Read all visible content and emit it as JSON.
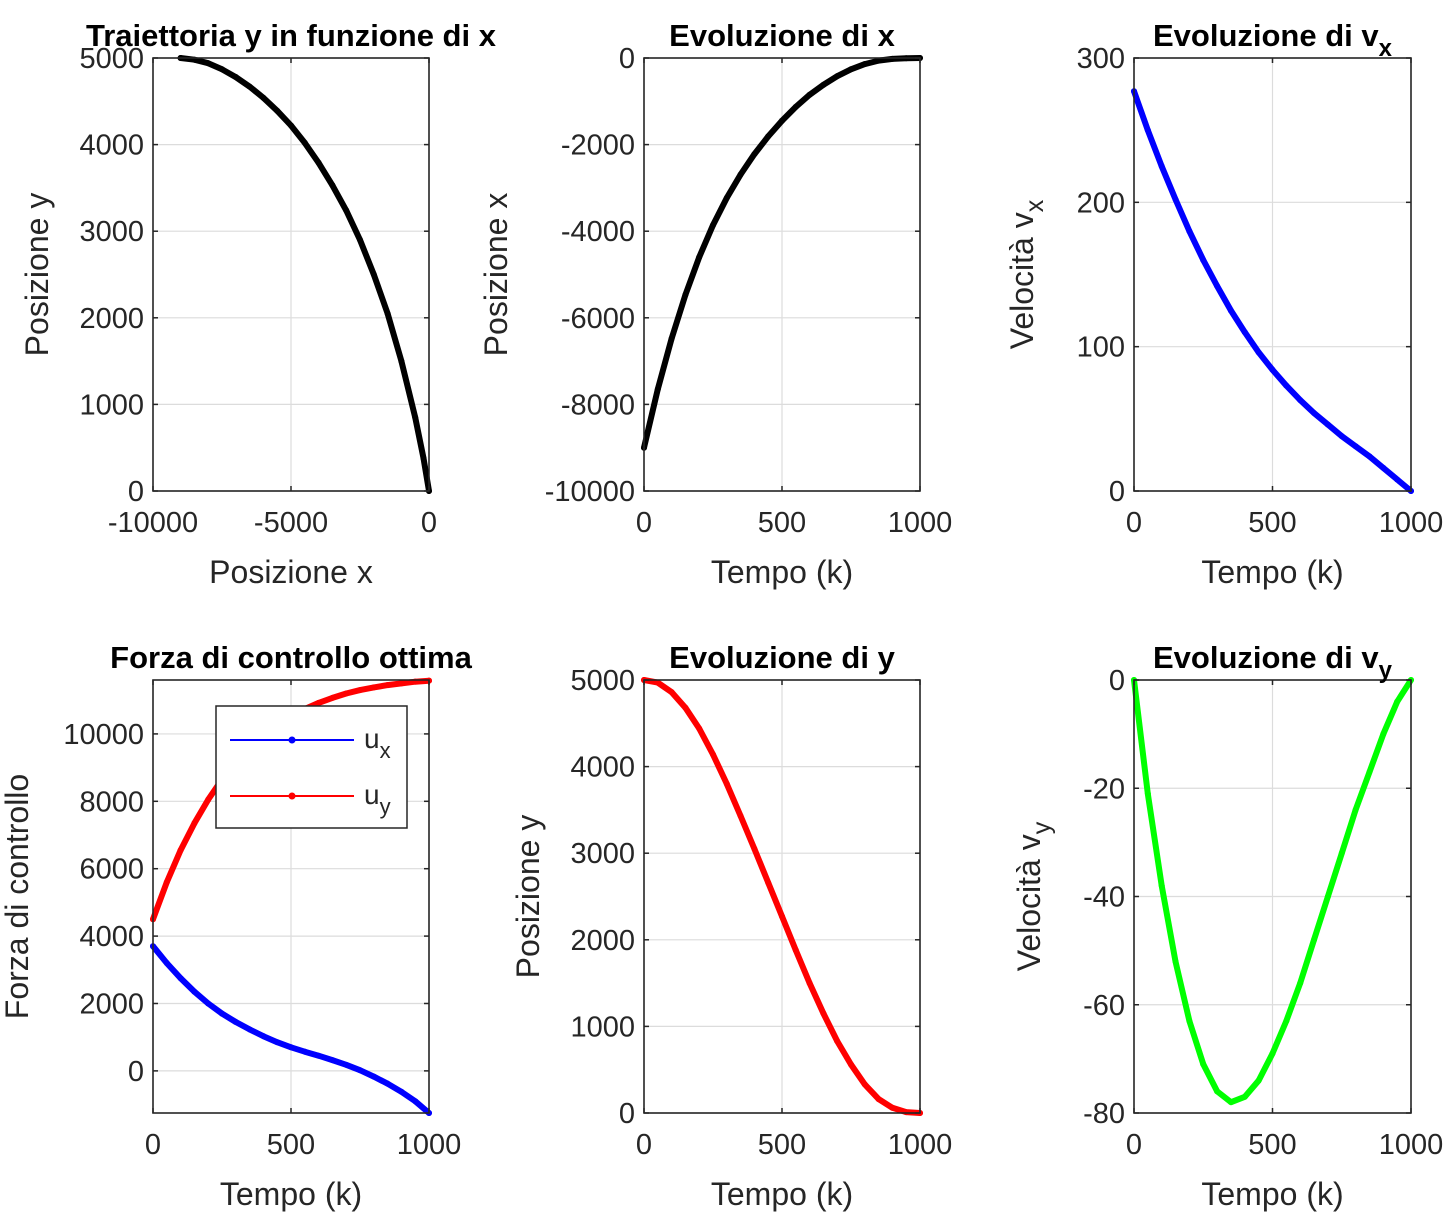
{
  "chart_data": [
    {
      "id": "traj",
      "type": "line",
      "title": "Traiettoria y in funzione di x",
      "xlabel": "Posizione x",
      "ylabel": "Posizione y",
      "xlim": [
        -10000,
        0
      ],
      "ylim": [
        0,
        5000
      ],
      "xticks": [
        -10000,
        -5000,
        0
      ],
      "yticks": [
        0,
        1000,
        2000,
        3000,
        4000,
        5000
      ],
      "xtick_labels": [
        "-10000",
        "-5000",
        "0"
      ],
      "ytick_labels": [
        "0",
        "1000",
        "2000",
        "3000",
        "4000",
        "5000"
      ],
      "grid": true,
      "series": [
        {
          "color": "#000000",
          "x": [
            -9000,
            -8500,
            -8000,
            -7500,
            -7000,
            -6500,
            -6000,
            -5500,
            -5000,
            -4500,
            -4000,
            -3500,
            -3000,
            -2500,
            -2000,
            -1500,
            -1000,
            -500,
            -200,
            0
          ],
          "y": [
            5000,
            4980,
            4940,
            4870,
            4780,
            4670,
            4540,
            4390,
            4220,
            4020,
            3790,
            3530,
            3240,
            2900,
            2500,
            2050,
            1500,
            850,
            380,
            0
          ]
        }
      ]
    },
    {
      "id": "evx",
      "type": "line",
      "title": "Evoluzione di x",
      "xlabel": "Tempo (k)",
      "ylabel": "Posizione x",
      "xlim": [
        0,
        1000
      ],
      "ylim": [
        -10000,
        0
      ],
      "xticks": [
        0,
        500,
        1000
      ],
      "yticks": [
        -10000,
        -8000,
        -6000,
        -4000,
        -2000,
        0
      ],
      "xtick_labels": [
        "0",
        "500",
        "1000"
      ],
      "ytick_labels": [
        "-10000",
        "-8000",
        "-6000",
        "-4000",
        "-2000",
        "0"
      ],
      "grid": true,
      "series": [
        {
          "color": "#000000",
          "x": [
            0,
            50,
            100,
            150,
            200,
            250,
            300,
            350,
            400,
            450,
            500,
            550,
            600,
            650,
            700,
            750,
            800,
            850,
            900,
            950,
            1000
          ],
          "y": [
            -9000,
            -7650,
            -6480,
            -5470,
            -4600,
            -3860,
            -3230,
            -2690,
            -2220,
            -1810,
            -1450,
            -1130,
            -850,
            -620,
            -420,
            -260,
            -140,
            -60,
            -20,
            -5,
            0
          ]
        }
      ]
    },
    {
      "id": "evvx",
      "type": "line",
      "title": "Evoluzione di v",
      "title_sub": "x",
      "xlabel": "Tempo (k)",
      "ylabel": "Velocità v",
      "ylabel_sub": "x",
      "xlim": [
        0,
        1000
      ],
      "ylim": [
        0,
        300
      ],
      "xticks": [
        0,
        500,
        1000
      ],
      "yticks": [
        0,
        100,
        200,
        300
      ],
      "xtick_labels": [
        "0",
        "500",
        "1000"
      ],
      "ytick_labels": [
        "0",
        "100",
        "200",
        "300"
      ],
      "grid": true,
      "series": [
        {
          "color": "#0000FF",
          "x": [
            0,
            50,
            100,
            150,
            200,
            250,
            300,
            350,
            400,
            450,
            500,
            550,
            600,
            650,
            700,
            750,
            800,
            850,
            900,
            950,
            1000
          ],
          "y": [
            277,
            250,
            225,
            202,
            180,
            160,
            142,
            125,
            110,
            96,
            84,
            73,
            63,
            54,
            46,
            38,
            31,
            24,
            16,
            8,
            0
          ]
        }
      ]
    },
    {
      "id": "force",
      "type": "line",
      "title": "Forza di controllo ottima",
      "xlabel": "Tempo (k)",
      "ylabel": "Forza di controllo",
      "xlim": [
        0,
        1000
      ],
      "ylim": [
        -1250,
        11600
      ],
      "xticks": [
        0,
        500,
        1000
      ],
      "yticks": [
        0,
        2000,
        4000,
        6000,
        8000,
        10000
      ],
      "xtick_labels": [
        "0",
        "500",
        "1000"
      ],
      "ytick_labels": [
        "0",
        "2000",
        "4000",
        "6000",
        "8000",
        "10000"
      ],
      "grid": true,
      "legend": "top-right",
      "series": [
        {
          "name": "u",
          "name_sub": "x",
          "color": "#0000FF",
          "x": [
            0,
            50,
            100,
            150,
            200,
            250,
            300,
            350,
            400,
            450,
            500,
            550,
            600,
            650,
            700,
            750,
            800,
            850,
            900,
            950,
            1000
          ],
          "y": [
            3700,
            3200,
            2750,
            2350,
            2000,
            1700,
            1450,
            1230,
            1030,
            850,
            700,
            570,
            450,
            320,
            180,
            20,
            -170,
            -380,
            -620,
            -900,
            -1250
          ]
        },
        {
          "name": "u",
          "name_sub": "y",
          "color": "#FF0000",
          "x": [
            0,
            50,
            100,
            150,
            200,
            250,
            300,
            350,
            400,
            450,
            500,
            550,
            600,
            650,
            700,
            750,
            800,
            850,
            900,
            950,
            1000
          ],
          "y": [
            4500,
            5600,
            6550,
            7350,
            8050,
            8650,
            9150,
            9580,
            9950,
            10260,
            10520,
            10740,
            10920,
            11070,
            11200,
            11300,
            11380,
            11450,
            11500,
            11550,
            11580
          ]
        }
      ]
    },
    {
      "id": "evy",
      "type": "line",
      "title": "Evoluzione di y",
      "xlabel": "Tempo (k)",
      "ylabel": "Posizione y",
      "xlim": [
        0,
        1000
      ],
      "ylim": [
        0,
        5000
      ],
      "xticks": [
        0,
        500,
        1000
      ],
      "yticks": [
        0,
        1000,
        2000,
        3000,
        4000,
        5000
      ],
      "xtick_labels": [
        "0",
        "500",
        "1000"
      ],
      "ytick_labels": [
        "0",
        "1000",
        "2000",
        "3000",
        "4000",
        "5000"
      ],
      "grid": true,
      "series": [
        {
          "color": "#FF0000",
          "x": [
            0,
            50,
            100,
            150,
            200,
            250,
            300,
            350,
            400,
            450,
            500,
            550,
            600,
            650,
            700,
            750,
            800,
            850,
            900,
            950,
            1000
          ],
          "y": [
            5000,
            4970,
            4860,
            4680,
            4440,
            4140,
            3800,
            3430,
            3050,
            2660,
            2270,
            1880,
            1500,
            1150,
            830,
            560,
            330,
            160,
            60,
            10,
            0
          ]
        }
      ]
    },
    {
      "id": "evvy",
      "type": "line",
      "title": "Evoluzione di v",
      "title_sub": "y",
      "xlabel": "Tempo (k)",
      "ylabel": "Velocità v",
      "ylabel_sub": "y",
      "xlim": [
        0,
        1000
      ],
      "ylim": [
        -80,
        0
      ],
      "xticks": [
        0,
        500,
        1000
      ],
      "yticks": [
        -80,
        -60,
        -40,
        -20,
        0
      ],
      "xtick_labels": [
        "0",
        "500",
        "1000"
      ],
      "ytick_labels": [
        "-80",
        "-60",
        "-40",
        "-20",
        "0"
      ],
      "grid": true,
      "series": [
        {
          "color": "#00FF00",
          "x": [
            0,
            50,
            100,
            150,
            200,
            250,
            300,
            350,
            400,
            450,
            500,
            550,
            600,
            650,
            700,
            750,
            800,
            850,
            900,
            950,
            1000
          ],
          "y": [
            0,
            -21,
            -38,
            -52,
            -63,
            -71,
            -76,
            -78,
            -77,
            -74,
            -69,
            -63,
            -56,
            -48,
            -40,
            -32,
            -24,
            -17,
            -10,
            -4,
            0
          ]
        }
      ]
    }
  ]
}
